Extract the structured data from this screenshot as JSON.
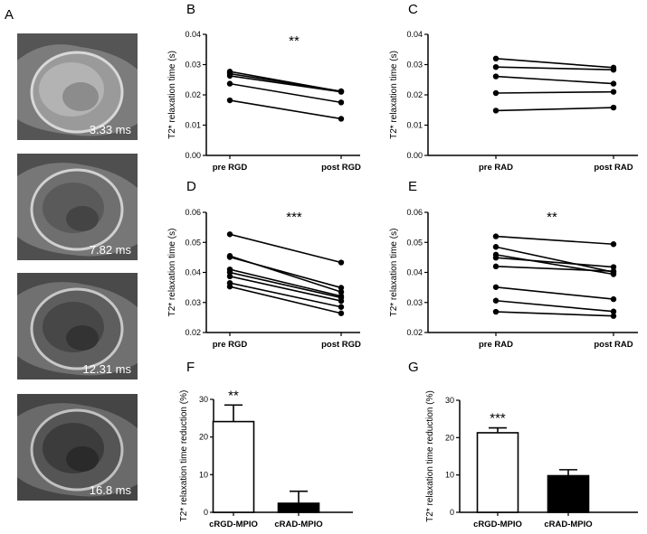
{
  "panel_labels": [
    "A",
    "B",
    "C",
    "D",
    "E",
    "F",
    "G"
  ],
  "mri_images": [
    {
      "echo_time": "3.33 ms"
    },
    {
      "echo_time": "7.82 ms"
    },
    {
      "echo_time": "12.31 ms"
    },
    {
      "echo_time": "16.8 ms"
    }
  ],
  "chart_data": [
    {
      "panel": "B",
      "type": "line",
      "ylabel": "T2* relaxation time (s)",
      "categories": [
        "pre RGD",
        "post RGD"
      ],
      "ylim": [
        0,
        0.04
      ],
      "yticks": [
        "0.00",
        "0.01",
        "0.02",
        "0.03",
        "0.04"
      ],
      "significance": "**",
      "series": [
        [
          0.0277,
          0.0211
        ],
        [
          0.027,
          0.0212
        ],
        [
          0.0263,
          0.021
        ],
        [
          0.0237,
          0.0175
        ],
        [
          0.0182,
          0.0121
        ]
      ]
    },
    {
      "panel": "C",
      "type": "line",
      "ylabel": "T2* relaxation time (s)",
      "categories": [
        "pre RAD",
        "post RAD"
      ],
      "ylim": [
        0,
        0.04
      ],
      "yticks": [
        "0.00",
        "0.01",
        "0.02",
        "0.03",
        "0.04"
      ],
      "significance": "",
      "series": [
        [
          0.032,
          0.029
        ],
        [
          0.0292,
          0.0283
        ],
        [
          0.0261,
          0.0237
        ],
        [
          0.0206,
          0.021
        ],
        [
          0.0148,
          0.0158
        ]
      ]
    },
    {
      "panel": "D",
      "type": "line",
      "ylabel": "T2* relaxation time (s)",
      "categories": [
        "pre RGD",
        "post RGD"
      ],
      "ylim": [
        0.02,
        0.06
      ],
      "yticks": [
        "0.02",
        "0.03",
        "0.04",
        "0.05",
        "0.06"
      ],
      "significance": "***",
      "series": [
        [
          0.0527,
          0.0433
        ],
        [
          0.0455,
          0.0335
        ],
        [
          0.0451,
          0.0349
        ],
        [
          0.041,
          0.0321
        ],
        [
          0.04,
          0.0316
        ],
        [
          0.0387,
          0.0305
        ],
        [
          0.0365,
          0.0285
        ],
        [
          0.0353,
          0.0264
        ]
      ]
    },
    {
      "panel": "E",
      "type": "line",
      "ylabel": "T2* relaxation time (s)",
      "categories": [
        "pre RAD",
        "post RAD"
      ],
      "ylim": [
        0.02,
        0.06
      ],
      "yticks": [
        "0.02",
        "0.03",
        "0.04",
        "0.05",
        "0.06"
      ],
      "significance": "**",
      "series": [
        [
          0.052,
          0.0494
        ],
        [
          0.0485,
          0.0401
        ],
        [
          0.0459,
          0.0394
        ],
        [
          0.0449,
          0.0418
        ],
        [
          0.042,
          0.0404
        ],
        [
          0.0351,
          0.0311
        ],
        [
          0.0306,
          0.027
        ],
        [
          0.0269,
          0.0255
        ]
      ]
    },
    {
      "panel": "F",
      "type": "bar",
      "ylabel": "T2* relaxation time reduction (%)",
      "categories": [
        "cRGD-MPIO",
        "cRAD-MPIO"
      ],
      "ylim": [
        0,
        30
      ],
      "yticks": [
        "0",
        "10",
        "20",
        "30"
      ],
      "values": [
        24.1,
        2.4
      ],
      "errors": [
        4.4,
        3.2
      ],
      "colors": [
        "#ffffff",
        "#000000"
      ],
      "significance": [
        "**",
        ""
      ]
    },
    {
      "panel": "G",
      "type": "bar",
      "ylabel": "T2* relaxation time reduction (%)",
      "categories": [
        "cRGD-MPIO",
        "cRAD-MPIO"
      ],
      "ylim": [
        0,
        30
      ],
      "yticks": [
        "0",
        "10",
        "20",
        "30"
      ],
      "values": [
        21.3,
        9.8
      ],
      "errors": [
        1.3,
        1.6
      ],
      "colors": [
        "#ffffff",
        "#000000"
      ],
      "significance": [
        "***",
        ""
      ]
    }
  ]
}
